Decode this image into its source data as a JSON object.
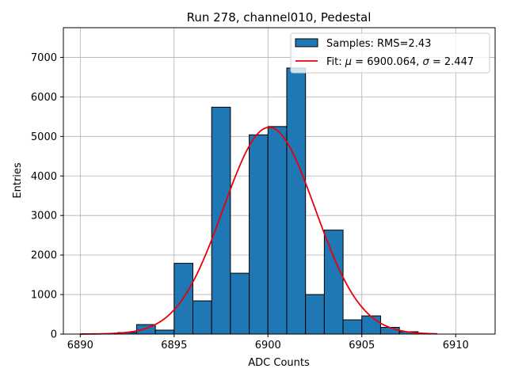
{
  "chart_data": {
    "type": "bar",
    "title": "Run 278, channel010, Pedestal",
    "xlabel": "ADC Counts",
    "ylabel": "Entries",
    "xlim": [
      6889.1,
      6912.1
    ],
    "ylim": [
      0,
      7750
    ],
    "xticks": [
      6890,
      6895,
      6900,
      6905,
      6910
    ],
    "yticks": [
      0,
      1000,
      2000,
      3000,
      4000,
      5000,
      6000,
      7000
    ],
    "grid": true,
    "legend_position": "top-right",
    "bar_color": "#1f77b4",
    "fit_color": "#e8000b",
    "bins": [
      {
        "x0": 6890,
        "x1": 6891,
        "count": 0
      },
      {
        "x0": 6891,
        "x1": 6892,
        "count": 5
      },
      {
        "x0": 6892,
        "x1": 6893,
        "count": 40
      },
      {
        "x0": 6893,
        "x1": 6894,
        "count": 240
      },
      {
        "x0": 6894,
        "x1": 6895,
        "count": 100
      },
      {
        "x0": 6895,
        "x1": 6896,
        "count": 1790
      },
      {
        "x0": 6896,
        "x1": 6897,
        "count": 840
      },
      {
        "x0": 6897,
        "x1": 6898,
        "count": 5740
      },
      {
        "x0": 6898,
        "x1": 6899,
        "count": 1540
      },
      {
        "x0": 6899,
        "x1": 6900,
        "count": 5040
      },
      {
        "x0": 6900,
        "x1": 6901,
        "count": 5250
      },
      {
        "x0": 6901,
        "x1": 6902,
        "count": 6730
      },
      {
        "x0": 6902,
        "x1": 6903,
        "count": 1000
      },
      {
        "x0": 6903,
        "x1": 6904,
        "count": 2630
      },
      {
        "x0": 6904,
        "x1": 6905,
        "count": 360
      },
      {
        "x0": 6905,
        "x1": 6906,
        "count": 460
      },
      {
        "x0": 6906,
        "x1": 6907,
        "count": 170
      },
      {
        "x0": 6907,
        "x1": 6908,
        "count": 60
      },
      {
        "x0": 6908,
        "x1": 6909,
        "count": 10
      }
    ],
    "fit": {
      "mu": 6900.064,
      "sigma": 2.447,
      "amplitude": 5230,
      "x_range": [
        6890,
        6909
      ]
    },
    "legend": [
      {
        "label": "Samples: RMS=2.43",
        "kind": "patch"
      },
      {
        "label_prefix": "Fit: ",
        "mu_symbol": "μ",
        "mu_text": " = 6900.064, ",
        "sigma_symbol": "σ",
        "sigma_text": " = 2.447",
        "kind": "line"
      }
    ]
  }
}
